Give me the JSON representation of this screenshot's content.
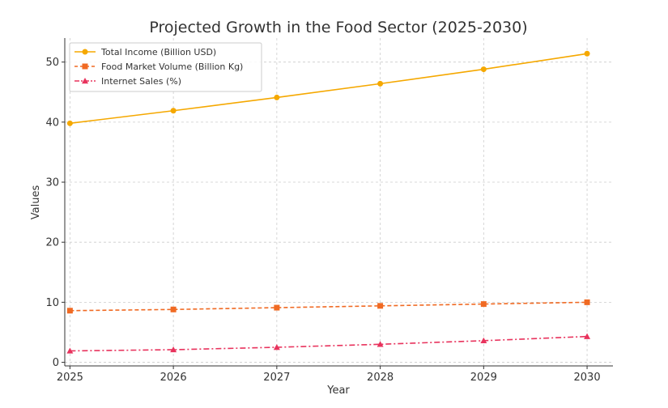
{
  "chart_data": {
    "type": "line",
    "title": "Projected Growth in the Food Sector (2025-2030)",
    "xlabel": "Year",
    "ylabel": "Values",
    "x": [
      2025,
      2026,
      2027,
      2028,
      2029,
      2030
    ],
    "x_tick_labels": [
      "2025",
      "2026",
      "2027",
      "2028",
      "2029",
      "2030"
    ],
    "xlim": [
      2024.95,
      2030.25
    ],
    "ylim": [
      -0.6,
      54
    ],
    "y_ticks": [
      0,
      10,
      20,
      30,
      40,
      50
    ],
    "y_tick_labels": [
      "0",
      "10",
      "20",
      "30",
      "40",
      "50"
    ],
    "grid": true,
    "legend_position": "top-left",
    "series": [
      {
        "name": "Total Income (Billion USD)",
        "values": [
          39.8,
          41.9,
          44.1,
          46.4,
          48.8,
          51.4
        ],
        "color": "#f5a800",
        "marker": "circle",
        "dash": "solid"
      },
      {
        "name": "Food Market Volume (Billion Kg)",
        "values": [
          8.6,
          8.8,
          9.1,
          9.4,
          9.7,
          10.0
        ],
        "color": "#f06a23",
        "marker": "square",
        "dash": "dashed"
      },
      {
        "name": "Internet Sales (%)",
        "values": [
          1.9,
          2.1,
          2.5,
          3.0,
          3.6,
          4.3
        ],
        "color": "#e8335d",
        "marker": "triangle",
        "dash": "dashdot"
      }
    ]
  }
}
